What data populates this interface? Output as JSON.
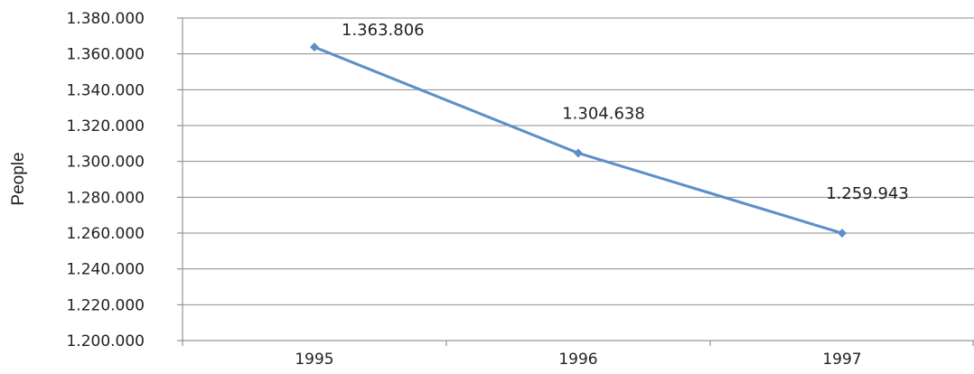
{
  "chart_data": {
    "type": "line",
    "title": "",
    "xlabel": "",
    "ylabel": "People",
    "categories": [
      "1995",
      "1996",
      "1997"
    ],
    "series": [
      {
        "values": [
          1363806,
          1304638,
          1259943
        ],
        "labels": [
          "1.363.806",
          "1.304.638",
          "1.259.943"
        ],
        "color": "#5b8fc9"
      }
    ],
    "ylim": [
      1200000,
      1380000
    ],
    "ystep": 20000,
    "ytick_labels": [
      "1.200.000",
      "1.220.000",
      "1.240.000",
      "1.260.000",
      "1.280.000",
      "1.300.000",
      "1.320.000",
      "1.340.000",
      "1.360.000",
      "1.380.000"
    ],
    "grid": true,
    "legend": "none"
  }
}
